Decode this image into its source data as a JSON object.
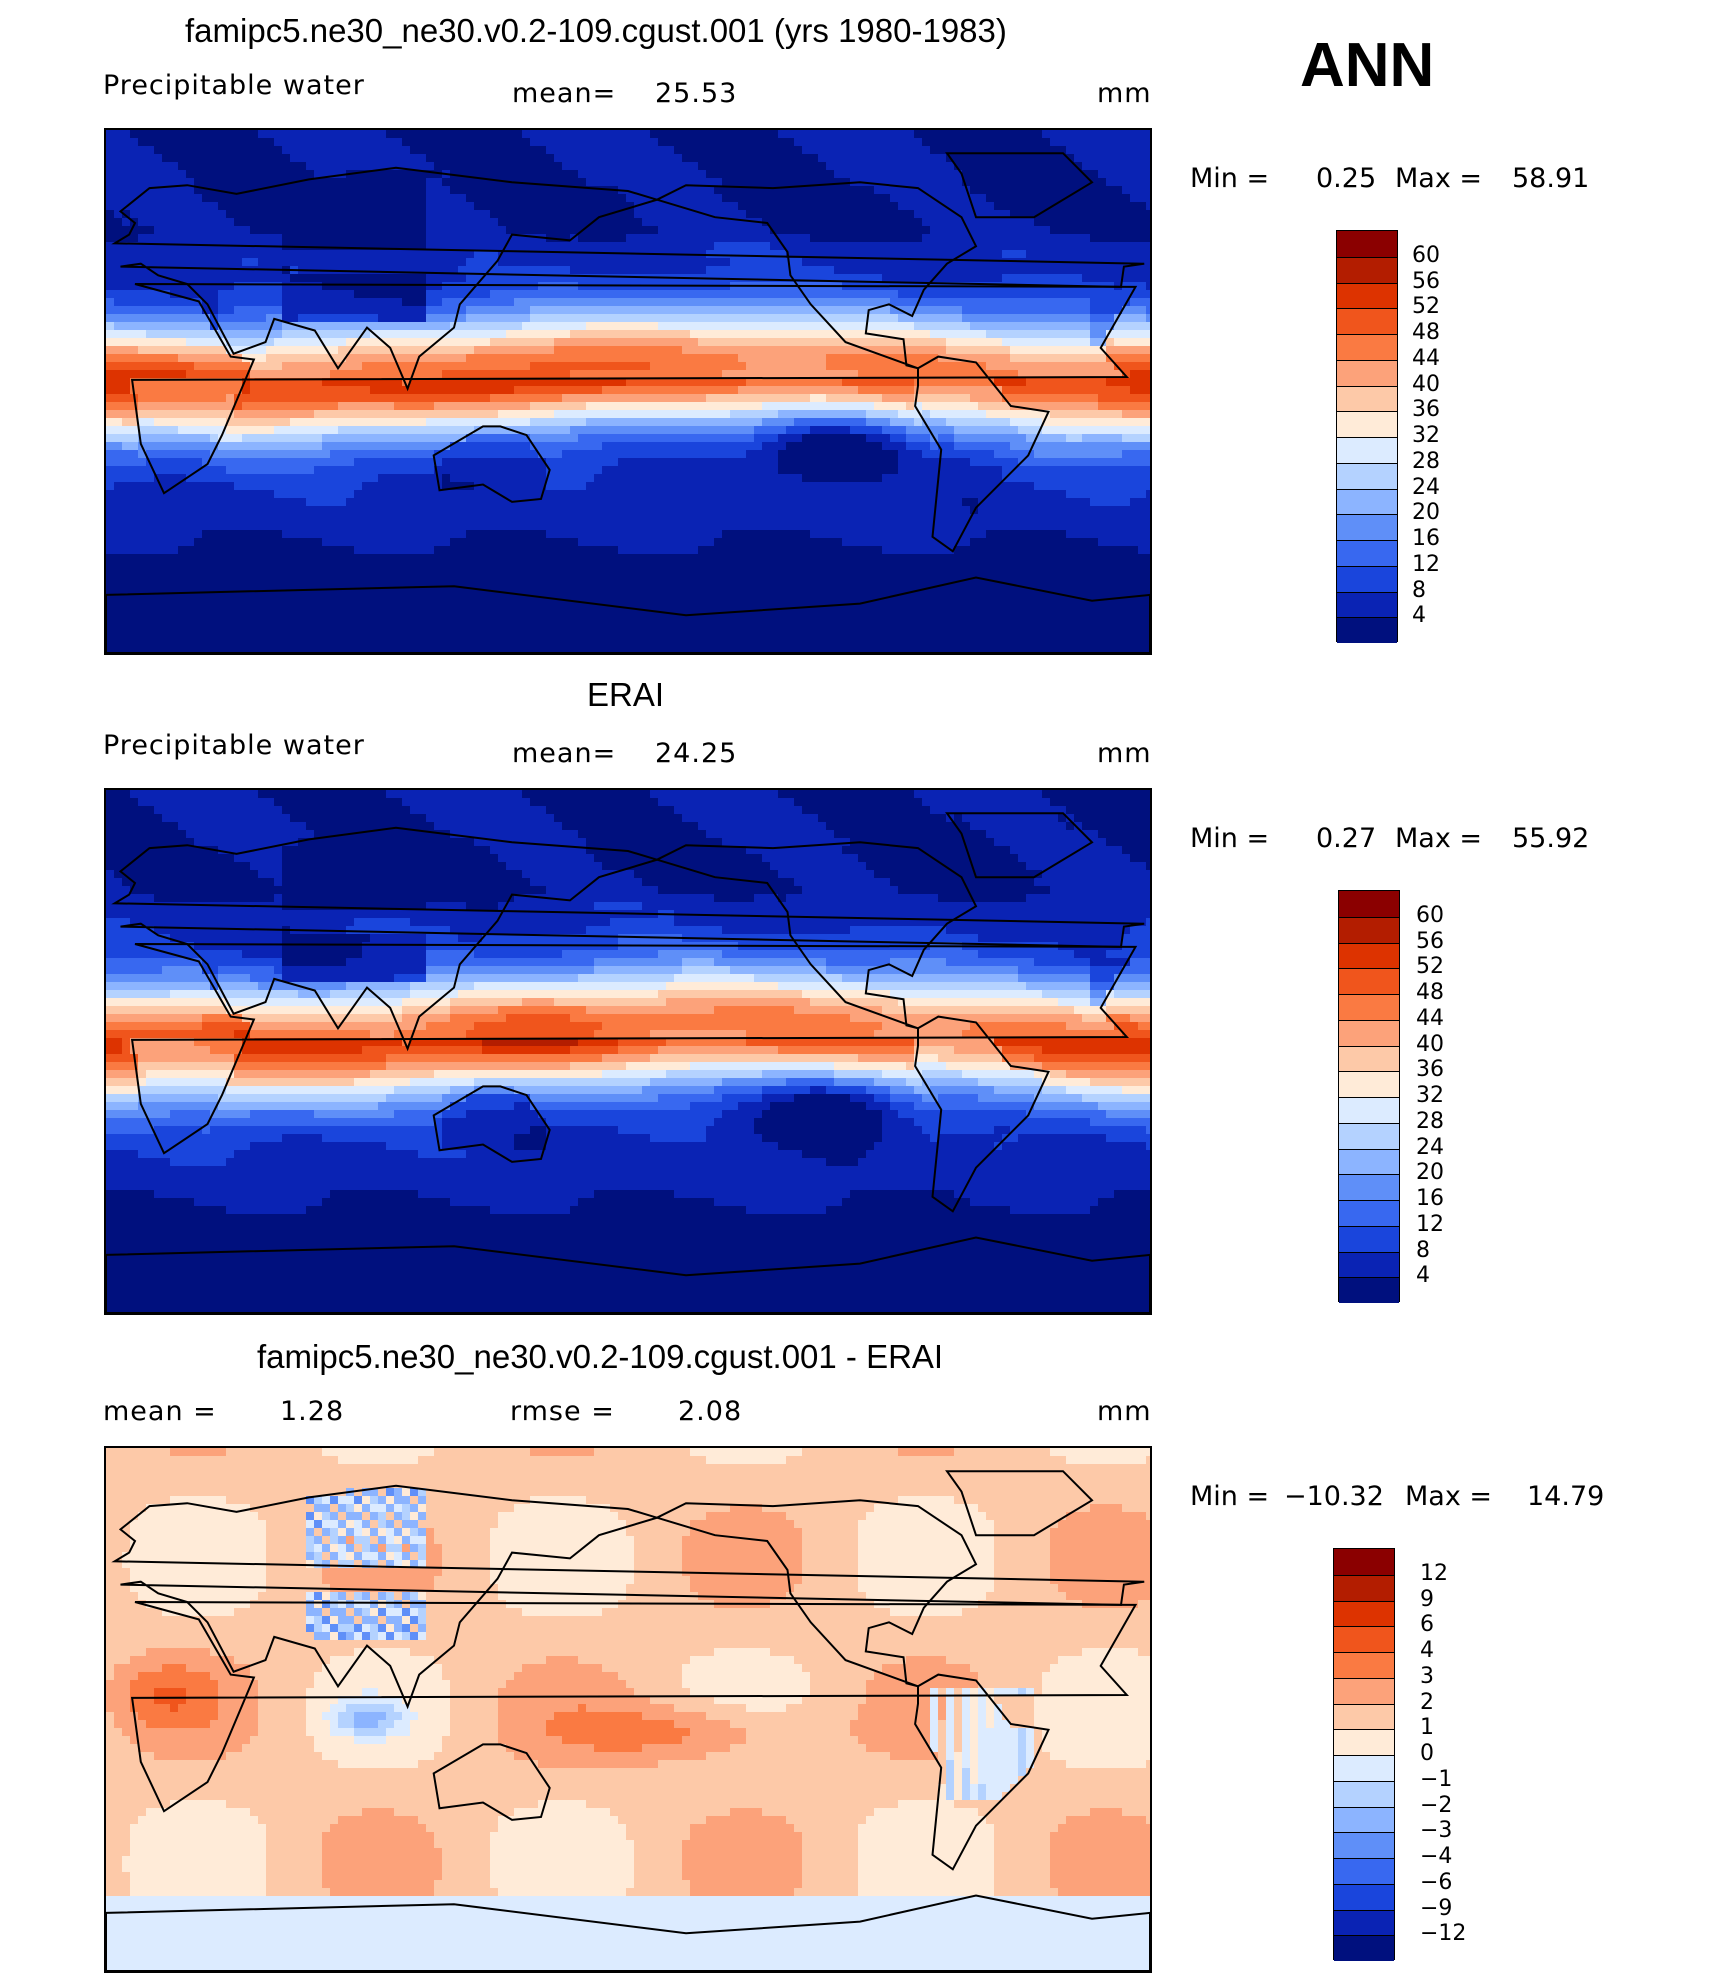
{
  "season": "ANN",
  "panels": [
    {
      "id": "model",
      "title": "famipc5.ne30_ne30.v0.2-109.cgust.001 (yrs 1980-1983)",
      "left_label": "Precipitable  water",
      "mean_label": "mean=",
      "mean_value": "25.53",
      "rmse_label": "",
      "rmse_value": "",
      "units": "mm",
      "min_label": "Min  =",
      "min_value": "0.25",
      "max_label": "Max  =",
      "max_value": "58.91",
      "colorbar": {
        "labels": [
          "60",
          "56",
          "52",
          "48",
          "44",
          "40",
          "36",
          "32",
          "28",
          "24",
          "20",
          "16",
          "12",
          "8",
          "4"
        ],
        "colors": [
          "#8b0000",
          "#b31d00",
          "#dd3300",
          "#f0551c",
          "#fa7a42",
          "#fca27a",
          "#fdc9a8",
          "#ffebd8",
          "#dcebff",
          "#b4d2ff",
          "#8cb4ff",
          "#5f8ff8",
          "#3868f0",
          "#1a45dc",
          "#0a23b4",
          "#00107e"
        ]
      },
      "field_type": "abs"
    },
    {
      "id": "obs",
      "title": "ERAI",
      "left_label": "Precipitable  water",
      "mean_label": "mean=",
      "mean_value": "24.25",
      "rmse_label": "",
      "rmse_value": "",
      "units": "mm",
      "min_label": "Min  =",
      "min_value": "0.27",
      "max_label": "Max  =",
      "max_value": "55.92",
      "colorbar": {
        "labels": [
          "60",
          "56",
          "52",
          "48",
          "44",
          "40",
          "36",
          "32",
          "28",
          "24",
          "20",
          "16",
          "12",
          "8",
          "4"
        ],
        "colors": [
          "#8b0000",
          "#b31d00",
          "#dd3300",
          "#f0551c",
          "#fa7a42",
          "#fca27a",
          "#fdc9a8",
          "#ffebd8",
          "#dcebff",
          "#b4d2ff",
          "#8cb4ff",
          "#5f8ff8",
          "#3868f0",
          "#1a45dc",
          "#0a23b4",
          "#00107e"
        ]
      },
      "field_type": "abs"
    },
    {
      "id": "diff",
      "title": "famipc5.ne30_ne30.v0.2-109.cgust.001 - ERAI",
      "left_label": "mean  =",
      "mean_label": "",
      "mean_value": "1.28",
      "rmse_label": "rmse  =",
      "rmse_value": "2.08",
      "units": "mm",
      "min_label": "Min  =",
      "min_value": "−10.32",
      "max_label": "Max  =",
      "max_value": "14.79",
      "colorbar": {
        "labels": [
          "12",
          "9",
          "6",
          "4",
          "3",
          "2",
          "1",
          "0",
          "−1",
          "−2",
          "−3",
          "−4",
          "−6",
          "−9",
          "−12"
        ],
        "colors": [
          "#8b0000",
          "#b31d00",
          "#dd3300",
          "#f0551c",
          "#fa7a42",
          "#fca27a",
          "#fdc9a8",
          "#ffebd8",
          "#dcebff",
          "#b4d2ff",
          "#8cb4ff",
          "#5f8ff8",
          "#3868f0",
          "#1a45dc",
          "#0a23b4",
          "#00107e"
        ]
      },
      "field_type": "diff"
    }
  ]
}
